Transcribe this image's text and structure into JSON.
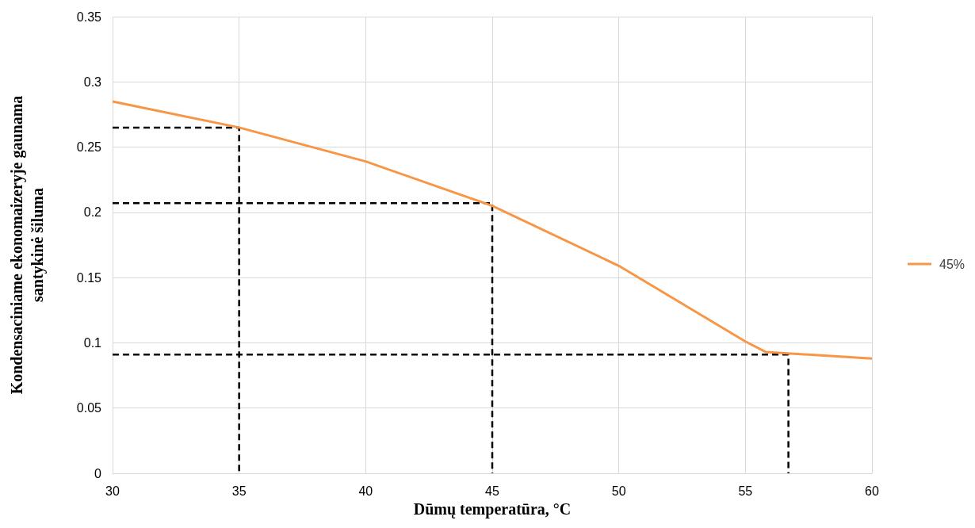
{
  "chart_data": {
    "type": "line",
    "xlabel": "Dūmų temperatūra, °C",
    "ylabel": "Kondensaciniame ekonomaizeryje gaunama santykinė šiluma",
    "xlim": [
      30,
      60
    ],
    "xticks": [
      30,
      35,
      40,
      45,
      50,
      55,
      60
    ],
    "ylim": [
      0,
      0.35
    ],
    "yticks": [
      0,
      0.05,
      0.1,
      0.15,
      0.2,
      0.25,
      0.3,
      0.35
    ],
    "grid": true,
    "legend": "right",
    "marker": "none",
    "series": [
      {
        "name": "45%",
        "color": "#f79646",
        "line_style": "solid",
        "x": [
          30,
          35,
          40,
          45,
          50,
          55,
          55.8,
          60
        ],
        "values": [
          0.285,
          0.265,
          0.239,
          0.205,
          0.159,
          0.101,
          0.093,
          0.088
        ]
      },
      {
        "color": "#000000",
        "line_style": "dashed",
        "x": [
          30,
          35,
          35
        ],
        "values": [
          0.265,
          0.265,
          0
        ]
      },
      {
        "color": "#000000",
        "line_style": "dashed",
        "x": [
          30,
          45,
          45
        ],
        "values": [
          0.207,
          0.207,
          0
        ]
      },
      {
        "color": "#000000",
        "line_style": "dashed",
        "x": [
          30,
          56.7,
          56.7
        ],
        "values": [
          0.091,
          0.091,
          0
        ]
      }
    ]
  }
}
